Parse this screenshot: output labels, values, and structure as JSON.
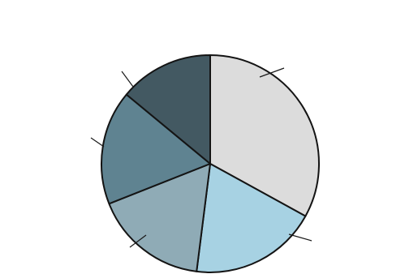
{
  "chart_data": {
    "type": "pie",
    "title": "",
    "slices": [
      {
        "label": "",
        "value": 33,
        "color": "#dcdcdc"
      },
      {
        "label": "",
        "value": 19,
        "color": "#a7d2e3"
      },
      {
        "label": "",
        "value": 17,
        "color": "#8fabb6"
      },
      {
        "label": "",
        "value": 17,
        "color": "#5f8391"
      },
      {
        "label": "",
        "value": 14,
        "color": "#435962"
      }
    ]
  }
}
